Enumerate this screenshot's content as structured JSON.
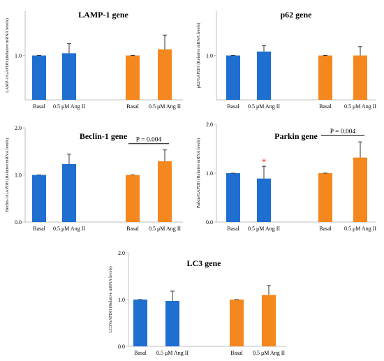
{
  "colors": {
    "blue": "#1f6fd1",
    "orange": "#f5871f",
    "axis": "#bfbfbf",
    "text": "#000000",
    "asterisk": "#ff2020"
  },
  "chart_data": [
    {
      "type": "bar",
      "title": "LAMP-1 gene",
      "ylabel": "LAMP-1/GAPDH  (Relative mRNA  levels)",
      "ylim": [
        0,
        2.0
      ],
      "yticks": [
        "1.0"
      ],
      "categories": [
        "Basal",
        "0.5 μM Ang II",
        "Basal",
        "0.5 μM Ang II"
      ],
      "values": [
        1.0,
        1.05,
        1.0,
        1.14
      ],
      "errors": [
        0.0,
        0.22,
        0.0,
        0.32
      ],
      "bar_colors": [
        "blue",
        "blue",
        "orange",
        "orange"
      ],
      "annotation": null
    },
    {
      "type": "bar",
      "title": "p62 gene",
      "ylabel": "p62/GAPDH  (Relative mRNA  levels)",
      "ylim": [
        0,
        2.0
      ],
      "yticks": [
        "1.0"
      ],
      "categories": [
        "Basal",
        "0.5 μM Ang II",
        "Basal",
        "0.5 μM Ang II"
      ],
      "values": [
        1.0,
        1.09,
        1.0,
        1.0
      ],
      "errors": [
        0.0,
        0.13,
        0.0,
        0.2
      ],
      "bar_colors": [
        "blue",
        "blue",
        "orange",
        "orange"
      ],
      "annotation": null
    },
    {
      "type": "bar",
      "title": "Beclin-1 gene",
      "ylabel": "Beclin-1/GAPDH  (Relative mRNA  levels)",
      "ylim": [
        0,
        2.0
      ],
      "yticks": [
        "0.0",
        "1.0",
        "2.0"
      ],
      "categories": [
        "Basal",
        "0.5 μM Ang II",
        "Basal",
        "0.5 μM Ang II"
      ],
      "values": [
        1.0,
        1.23,
        1.0,
        1.29
      ],
      "errors": [
        0.0,
        0.21,
        0.0,
        0.24
      ],
      "bar_colors": [
        "blue",
        "blue",
        "orange",
        "orange"
      ],
      "annotation": "P = 0.004"
    },
    {
      "type": "bar",
      "title": "Parkin gene",
      "ylabel": "Parkin/GAPDH  (Relative mRNA  levels)",
      "ylim": [
        0,
        2.0
      ],
      "yticks": [
        "0.0",
        "1.0",
        "2.0"
      ],
      "categories": [
        "Basal",
        "0.5 μM Ang II",
        "Basal",
        "0.5 μM Ang II"
      ],
      "values": [
        1.0,
        0.89,
        1.0,
        1.32
      ],
      "errors": [
        0.0,
        0.25,
        0.0,
        0.32
      ],
      "bar_colors": [
        "blue",
        "blue",
        "orange",
        "orange"
      ],
      "annotation": "P = 0.004",
      "asterisk": "*"
    },
    {
      "type": "bar",
      "title": "LC3 gene",
      "ylabel": "LC3/GAPDH  (Relative mRNA  levels)",
      "ylim": [
        0,
        2.0
      ],
      "yticks": [
        "0.0",
        "1.0",
        "2.0"
      ],
      "categories": [
        "Basal",
        "0.5 μM Ang II",
        "Basal",
        "0.5 μM Ang II"
      ],
      "values": [
        1.0,
        0.97,
        1.0,
        1.1
      ],
      "errors": [
        0.0,
        0.21,
        0.0,
        0.2
      ],
      "bar_colors": [
        "blue",
        "blue",
        "orange",
        "orange"
      ],
      "annotation": null
    }
  ]
}
